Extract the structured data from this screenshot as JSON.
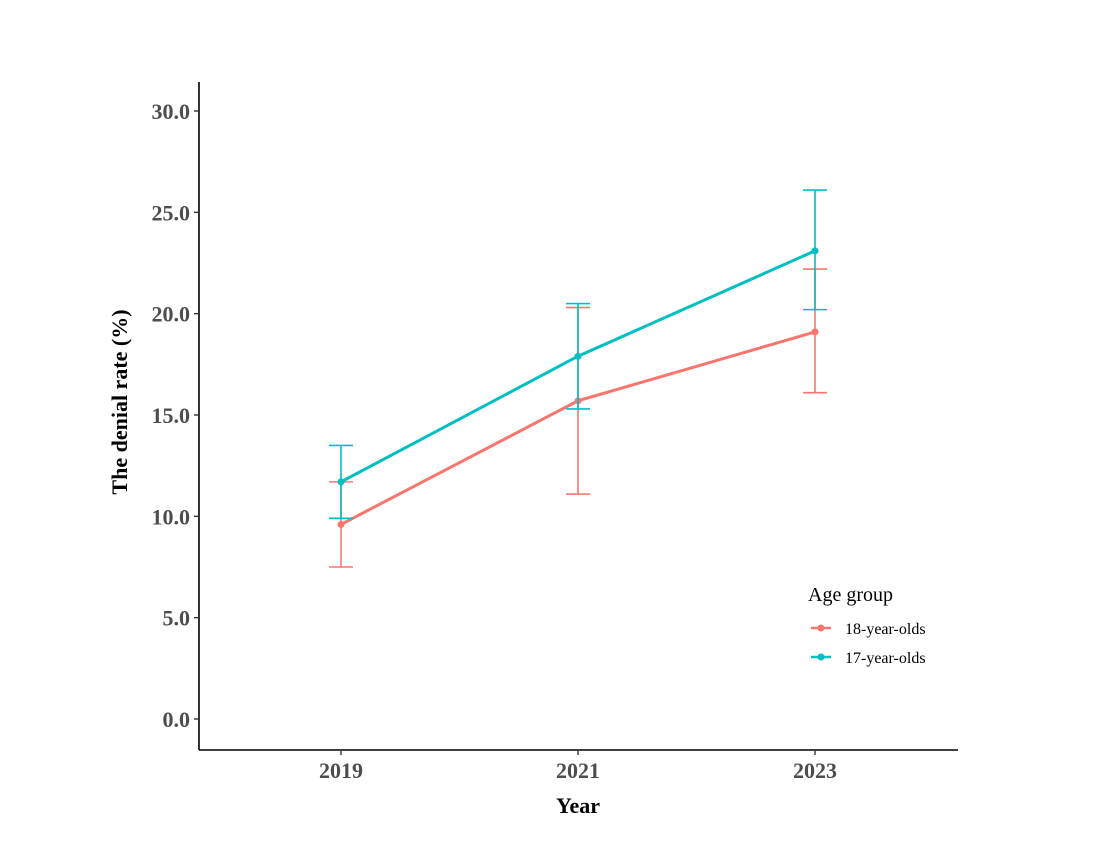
{
  "chart_data": {
    "type": "line",
    "title": "",
    "xlabel": "Year",
    "ylabel": "The denial rate (%)",
    "x": [
      "2019",
      "2021",
      "2023"
    ],
    "ylim": [
      0,
      30
    ],
    "y_ticks": [
      "0.0",
      "5.0",
      "10.0",
      "15.0",
      "20.0",
      "25.0",
      "30.0"
    ],
    "grid": false,
    "legend": {
      "title": "Age group",
      "position": "bottom-right"
    },
    "series": [
      {
        "name": "18-year-olds",
        "color": "#F8766D",
        "values": [
          9.6,
          15.7,
          19.1
        ],
        "error_low": [
          7.5,
          11.1,
          16.1
        ],
        "error_high": [
          11.7,
          20.3,
          22.2
        ]
      },
      {
        "name": "17-year-olds",
        "color": "#00BFC4",
        "values": [
          11.7,
          17.9,
          23.1
        ],
        "error_low": [
          9.9,
          15.3,
          20.2
        ],
        "error_high": [
          13.5,
          20.5,
          26.1
        ]
      }
    ]
  }
}
